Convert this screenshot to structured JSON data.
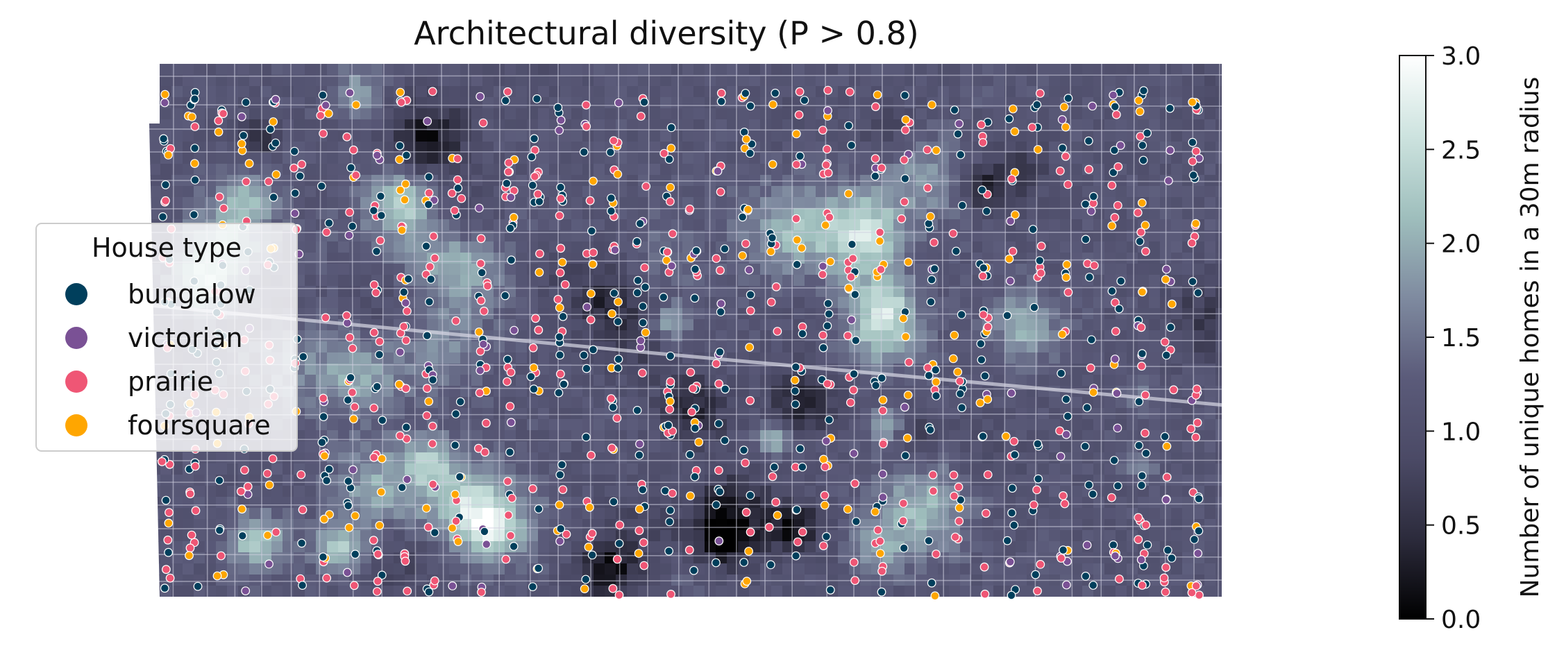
{
  "chart_data": {
    "type": "heatmap",
    "title": "Architectural diversity (P > 0.8)",
    "colorbar": {
      "label": "Number of unique homes in a 30m radius",
      "range": [
        0.0,
        3.0
      ],
      "ticks": [
        "0.0",
        "0.5",
        "1.0",
        "1.5",
        "2.0",
        "2.5",
        "3.0"
      ],
      "colormap": [
        "#000000",
        "#2c2b3c",
        "#4b4a66",
        "#5b5b7a",
        "#7f8ba0",
        "#9fbfbd",
        "#cde3df",
        "#ffffff"
      ]
    },
    "legend": {
      "title": "House type",
      "position": "left",
      "items": [
        {
          "label": "bungalow",
          "color": "#003f5c"
        },
        {
          "label": "victorian",
          "color": "#7a5195"
        },
        {
          "label": "prairie",
          "color": "#ef5675"
        },
        {
          "label": "foursquare",
          "color": "#ffa600"
        }
      ]
    },
    "series": [
      {
        "name": "bungalow",
        "color": "#003f5c"
      },
      {
        "name": "victorian",
        "color": "#7a5195"
      },
      {
        "name": "prairie",
        "color": "#ef5675"
      },
      {
        "name": "foursquare",
        "color": "#ffa600"
      }
    ],
    "axes_visible": false
  }
}
